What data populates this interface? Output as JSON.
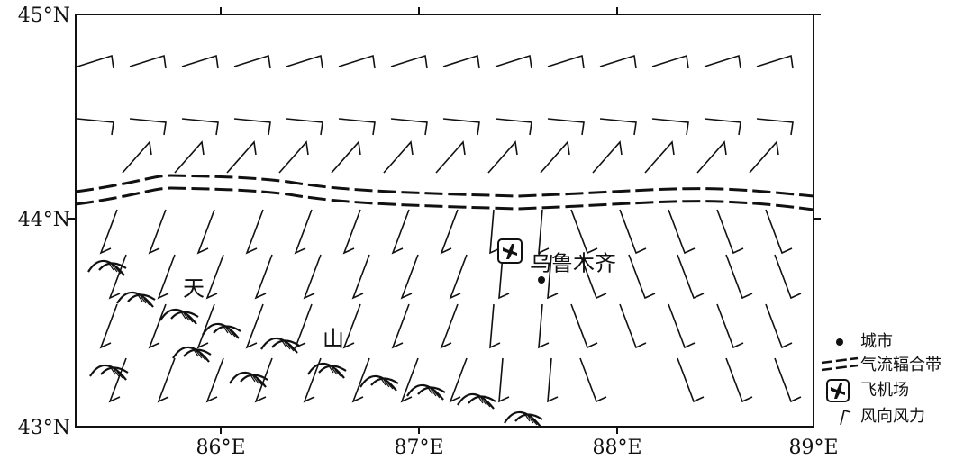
{
  "lat_labels": [
    "45°N",
    "44°N",
    "43°N"
  ],
  "lon_labels": [
    "86°E",
    "87°E",
    "88°E",
    "89°E"
  ],
  "map_labels": {
    "mountain_1": "天",
    "mountain_2": "山",
    "city": "乌鲁木齐"
  },
  "legend": [
    "城市",
    "气流辐合带",
    "飞机场",
    "风向风力"
  ]
}
